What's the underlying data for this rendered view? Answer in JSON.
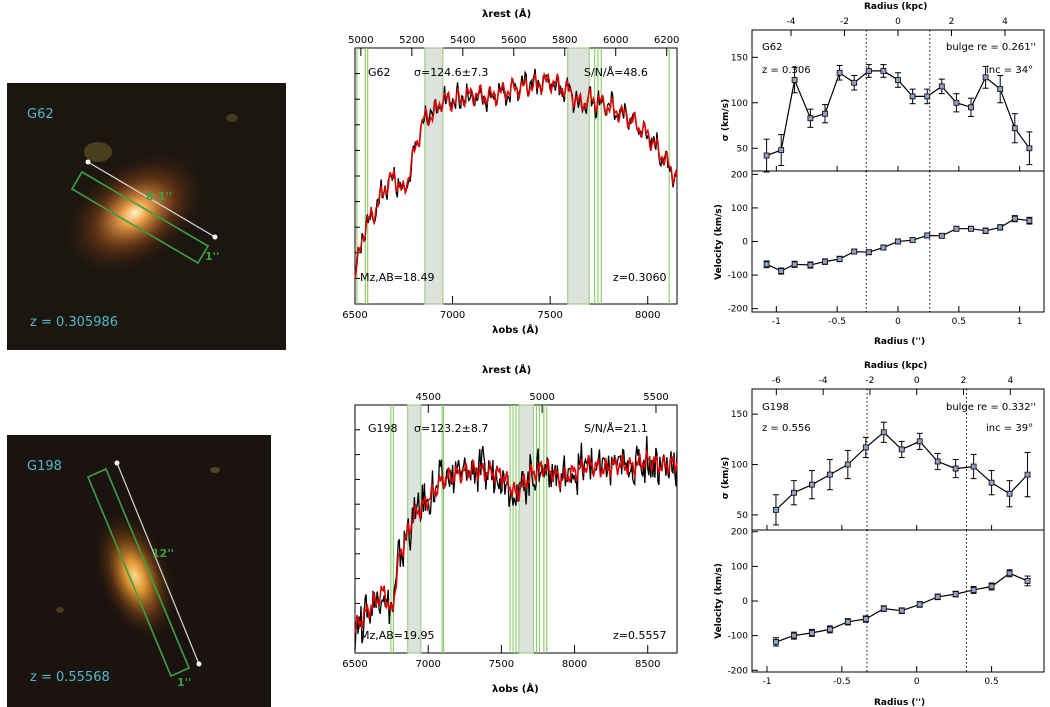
{
  "panels": [
    {
      "galaxy": "G62",
      "image": {
        "label": "G62",
        "z_text": "z = 0.305986",
        "length_label": "8.1''",
        "width_label": "1''"
      },
      "spectrum": {
        "top_axis_label": "λrest (Å)",
        "bottom_axis_label": "λobs (Å)",
        "name": "G62",
        "sigma_text": "σ=124.6±7.3",
        "sn_text": "S/N/Å=48.6",
        "mag_text": "Mz,AB=18.49",
        "z_text": "z=0.3060"
      },
      "kinematics": {
        "top_axis_label": "Radius (kpc)",
        "bottom_axis_label": "Radius ('')",
        "name": "G62",
        "z_text": "z = 0.306",
        "bulge_text": "bulge re = 0.261''",
        "inc_text": "inc = 34°",
        "sigma_ylabel": "σ (km/s)",
        "vel_ylabel": "Velocity (km/s)"
      }
    },
    {
      "galaxy": "G198",
      "image": {
        "label": "G198",
        "z_text": "z = 0.55568",
        "length_label": "12''",
        "width_label": "1''"
      },
      "spectrum": {
        "top_axis_label": "λrest (Å)",
        "bottom_axis_label": "λobs (Å)",
        "name": "G198",
        "sigma_text": "σ=123.2±8.7",
        "sn_text": "S/N/Å=21.1",
        "mag_text": "Mz,AB=19.95",
        "z_text": "z=0.5557"
      },
      "kinematics": {
        "top_axis_label": "Radius (kpc)",
        "bottom_axis_label": "Radius ('')",
        "name": "G198",
        "z_text": "z = 0.556",
        "bulge_text": "bulge re = 0.332''",
        "inc_text": "inc = 39°",
        "sigma_ylabel": "σ (km/s)",
        "vel_ylabel": "Velocity (km/s)"
      }
    }
  ],
  "colors": {
    "data_line": "#000000",
    "model_line": "#e00000",
    "mask_band": "#dde2dd",
    "mask_edge": "#8fce6f",
    "image_label": "#4fb8c8",
    "slit": "#3aa040",
    "marker": "#8ea3c8"
  },
  "chart_data": [
    {
      "type": "line",
      "name": "G62 spectrum",
      "x_ticks": [
        6500,
        7000,
        7500,
        8000
      ],
      "xlim": [
        6500,
        8150
      ],
      "top_ticks": [
        5000,
        5200,
        5400,
        5600,
        5800,
        6000,
        6200
      ],
      "redshift": 0.306,
      "mask_bands": [
        [
          6858,
          6950
        ],
        [
          7590,
          7700
        ]
      ],
      "mask_lines": [
        6510,
        6553,
        6565,
        7728,
        7745,
        7762,
        8110
      ],
      "x": [
        6500,
        6550,
        6600,
        6650,
        6700,
        6750,
        6800,
        6850,
        6900,
        6950,
        7000,
        7100,
        7200,
        7300,
        7400,
        7500,
        7600,
        7650,
        7700,
        7750,
        7800,
        7900,
        8000,
        8100,
        8150
      ],
      "flux_relative": [
        0.12,
        0.3,
        0.36,
        0.45,
        0.5,
        0.43,
        0.58,
        0.72,
        0.74,
        0.8,
        0.79,
        0.82,
        0.81,
        0.84,
        0.85,
        0.87,
        0.83,
        0.78,
        0.8,
        0.79,
        0.77,
        0.73,
        0.66,
        0.55,
        0.49
      ]
    },
    {
      "type": "scatter",
      "name": "G62 velocity dispersion",
      "xlabel": "Radius ('')",
      "ylabel": "σ (km/s)",
      "xlim": [
        -1.2,
        1.2
      ],
      "ylim": [
        25,
        180
      ],
      "y_ticks": [
        50,
        100,
        150
      ],
      "vlines": [
        -0.261,
        0.261
      ],
      "x": [
        -1.08,
        -0.96,
        -0.85,
        -0.72,
        -0.6,
        -0.48,
        -0.36,
        -0.24,
        -0.12,
        0.0,
        0.12,
        0.24,
        0.36,
        0.48,
        0.6,
        0.72,
        0.84,
        0.96,
        1.08
      ],
      "y": [
        42,
        48,
        125,
        83,
        88,
        133,
        122,
        135,
        135,
        125,
        107,
        107,
        118,
        100,
        95,
        128,
        115,
        72,
        50
      ],
      "yerr": [
        18,
        17,
        14,
        10,
        10,
        8,
        8,
        7,
        7,
        8,
        8,
        8,
        8,
        10,
        10,
        12,
        15,
        16,
        18
      ]
    },
    {
      "type": "scatter",
      "name": "G62 velocity",
      "xlabel": "Radius ('')",
      "ylabel": "Velocity (km/s)",
      "xlim": [
        -1.2,
        1.2
      ],
      "ylim": [
        -210,
        210
      ],
      "y_ticks": [
        -200,
        -100,
        0,
        100,
        200
      ],
      "x_ticks": [
        -1,
        -0.5,
        0,
        0.5,
        1
      ],
      "x_top_ticks": [
        -4,
        -2,
        0,
        2,
        4
      ],
      "kpc_per_arcsec": 4.55,
      "vlines": [
        -0.261,
        0.261
      ],
      "x": [
        -1.08,
        -0.96,
        -0.85,
        -0.72,
        -0.6,
        -0.48,
        -0.36,
        -0.24,
        -0.12,
        0.0,
        0.12,
        0.24,
        0.36,
        0.48,
        0.6,
        0.72,
        0.84,
        0.96,
        1.08
      ],
      "y": [
        -68,
        -88,
        -68,
        -70,
        -60,
        -52,
        -30,
        -32,
        -18,
        0,
        4,
        18,
        17,
        38,
        38,
        32,
        42,
        68,
        62
      ],
      "yerr": [
        10,
        9,
        9,
        9,
        8,
        8,
        7,
        7,
        7,
        7,
        7,
        7,
        7,
        7,
        7,
        8,
        8,
        9,
        10
      ]
    },
    {
      "type": "line",
      "name": "G198 spectrum",
      "x_ticks": [
        6500,
        7000,
        7500,
        8000,
        8500
      ],
      "xlim": [
        6500,
        8700
      ],
      "top_ticks": [
        4500,
        5000,
        5500
      ],
      "redshift": 0.5557,
      "mask_bands": [
        [
          6860,
          6950
        ],
        [
          7620,
          7720
        ]
      ],
      "mask_lines": [
        6745,
        6762,
        7095,
        7105,
        7560,
        7580,
        7600,
        7740,
        7760,
        7790,
        7810
      ],
      "x": [
        6500,
        6600,
        6700,
        6750,
        6800,
        6900,
        7000,
        7100,
        7200,
        7300,
        7400,
        7500,
        7600,
        7700,
        7800,
        7900,
        8000,
        8100,
        8200,
        8300,
        8400,
        8500,
        8600,
        8700
      ],
      "flux_relative": [
        0.1,
        0.18,
        0.25,
        0.15,
        0.38,
        0.55,
        0.62,
        0.7,
        0.72,
        0.74,
        0.73,
        0.72,
        0.64,
        0.72,
        0.75,
        0.7,
        0.73,
        0.76,
        0.74,
        0.76,
        0.75,
        0.78,
        0.75,
        0.77
      ]
    },
    {
      "type": "scatter",
      "name": "G198 velocity dispersion",
      "xlabel": "Radius ('')",
      "ylabel": "σ (km/s)",
      "xlim": [
        -1.1,
        0.85
      ],
      "ylim": [
        35,
        175
      ],
      "y_ticks": [
        50,
        100,
        150
      ],
      "vlines": [
        -0.332,
        0.332
      ],
      "x": [
        -0.94,
        -0.82,
        -0.7,
        -0.58,
        -0.46,
        -0.34,
        -0.22,
        -0.1,
        0.02,
        0.14,
        0.26,
        0.38,
        0.5,
        0.62,
        0.74
      ],
      "y": [
        55,
        72,
        80,
        90,
        100,
        117,
        132,
        115,
        123,
        103,
        96,
        98,
        82,
        71,
        90
      ],
      "yerr": [
        15,
        12,
        14,
        15,
        14,
        10,
        10,
        8,
        8,
        8,
        9,
        12,
        12,
        13,
        22
      ]
    },
    {
      "type": "scatter",
      "name": "G198 velocity",
      "xlabel": "Radius ('')",
      "ylabel": "Velocity (km/s)",
      "xlim": [
        -1.1,
        0.85
      ],
      "ylim": [
        -205,
        205
      ],
      "y_ticks": [
        -200,
        -100,
        0,
        100,
        200
      ],
      "x_ticks": [
        -1,
        -0.5,
        0,
        0.5
      ],
      "x_top_ticks": [
        -6,
        -4,
        -2,
        0,
        2,
        4
      ],
      "kpc_per_arcsec": 6.4,
      "vlines": [
        -0.332,
        0.332
      ],
      "x": [
        -0.94,
        -0.82,
        -0.7,
        -0.58,
        -0.46,
        -0.34,
        -0.22,
        -0.1,
        0.02,
        0.14,
        0.26,
        0.38,
        0.5,
        0.62,
        0.74
      ],
      "y": [
        -118,
        -100,
        -92,
        -82,
        -60,
        -52,
        -22,
        -28,
        -10,
        12,
        20,
        32,
        42,
        80,
        58
      ],
      "yerr": [
        12,
        10,
        10,
        10,
        9,
        9,
        8,
        8,
        8,
        8,
        8,
        10,
        10,
        10,
        14
      ]
    }
  ]
}
